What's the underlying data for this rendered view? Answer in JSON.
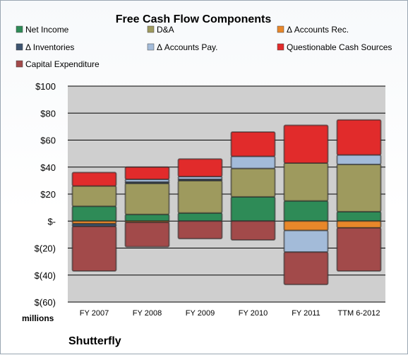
{
  "chart_data": {
    "type": "bar",
    "stacked": true,
    "title": "Free Cash Flow Components",
    "units_label": "millions",
    "company": "Shutterfly",
    "categories": [
      "FY 2007",
      "FY 2008",
      "FY 2009",
      "FY 2010",
      "FY 2011",
      "TTM 6-2012"
    ],
    "ylim": [
      -60,
      100
    ],
    "yticks": [
      "$100",
      "$80",
      "$60",
      "$40",
      "$20",
      "$-",
      "$(20)",
      "$(40)",
      "$(60)"
    ],
    "ytick_values": [
      100,
      80,
      60,
      40,
      20,
      0,
      -20,
      -40,
      -60
    ],
    "grid": true,
    "legend_position": "top",
    "series": [
      {
        "name": "Net Income",
        "color": "#2e8b57",
        "values": [
          11,
          5,
          6,
          18,
          15,
          7
        ]
      },
      {
        "name": "D&A",
        "color": "#9e9a5e",
        "values": [
          15,
          23,
          24,
          21,
          28,
          35
        ]
      },
      {
        "name": "Δ Accounts Rec.",
        "color": "#e8872a",
        "values": [
          -2,
          -1,
          0,
          0,
          -7,
          -5
        ]
      },
      {
        "name": "Δ Inventories",
        "color": "#3d5470",
        "values": [
          -2,
          1,
          1,
          0,
          0,
          0
        ]
      },
      {
        "name": "Δ Accounts Pay.",
        "color": "#a3bbd9",
        "values": [
          0,
          2,
          2,
          9,
          -16,
          7
        ]
      },
      {
        "name": "Questionable Cash Sources",
        "color": "#e12b2b",
        "values": [
          10,
          9,
          13,
          18,
          28,
          26
        ]
      },
      {
        "name": "Capital Expenditure",
        "color": "#a24a4a",
        "values": [
          -33,
          -18,
          -13,
          -14,
          -24,
          -32
        ]
      }
    ]
  }
}
